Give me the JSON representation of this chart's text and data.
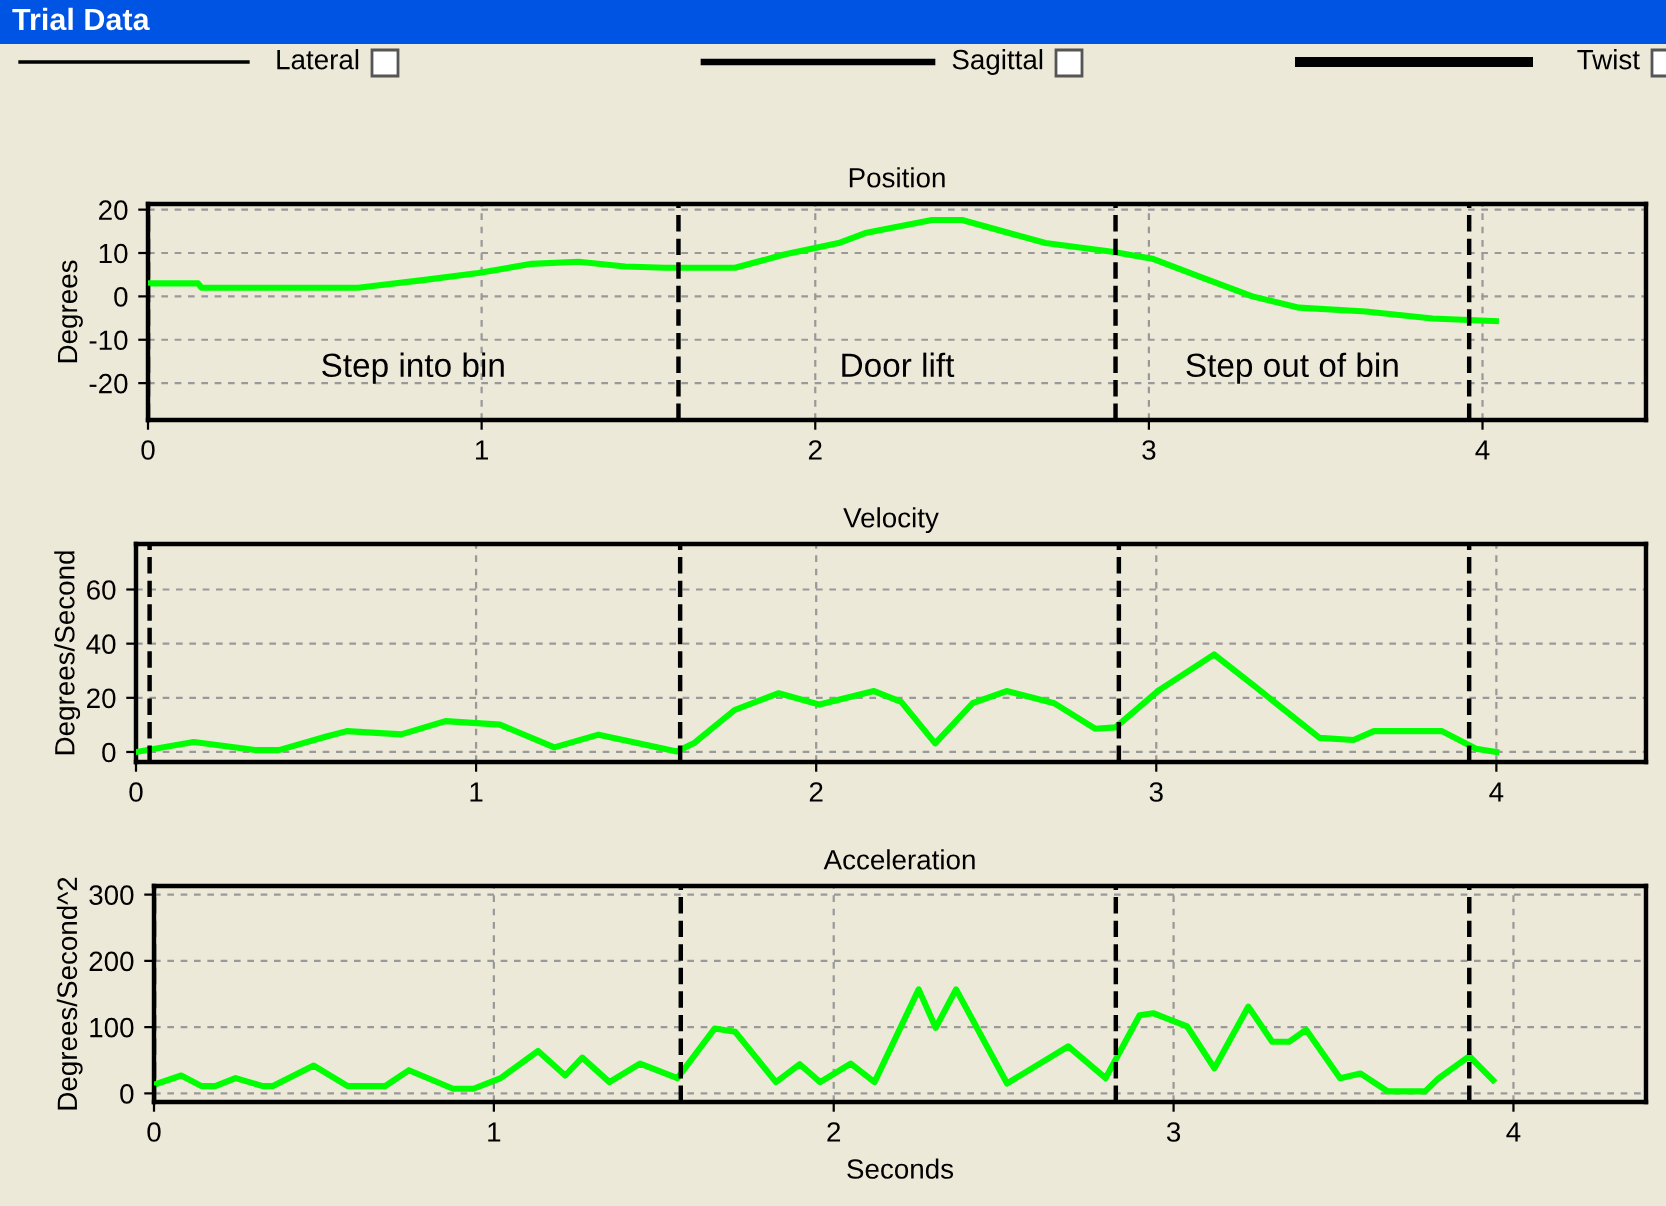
{
  "chart_data": [
    {
      "type": "line",
      "title": "Position",
      "ylabel": "Degrees",
      "xlim": [
        0,
        4.49
      ],
      "ylim": [
        -28.5,
        21.3
      ],
      "xticks": [
        0,
        1,
        2,
        3,
        4
      ],
      "yticks": [
        20,
        10,
        0,
        -10,
        -20
      ],
      "grid": true,
      "marker": "none",
      "line_style": "solid",
      "series": [
        {
          "color": "#00ff00",
          "x": [
            0,
            0.15,
            0.16,
            0.63,
            0.83,
            0.99,
            1.15,
            1.29,
            1.43,
            1.55,
            1.76,
            1.91,
            2.07,
            2.15,
            2.35,
            2.44,
            2.69,
            2.89,
            3.01,
            3.15,
            3.31,
            3.45,
            3.65,
            3.85,
            4.04
          ],
          "values": [
            3,
            3,
            2,
            2,
            3.8,
            5.4,
            7.5,
            8,
            6.9,
            6.6,
            6.6,
            9.7,
            12.3,
            14.6,
            17.6,
            17.6,
            12.3,
            10.3,
            8.7,
            4.6,
            0,
            -2.6,
            -3.5,
            -5.1,
            -5.7
          ]
        }
      ],
      "ref_lines": [
        {
          "axis": "x",
          "value": 0,
          "color": "#000000",
          "line_style": "dashed"
        },
        {
          "axis": "x",
          "value": 1.59,
          "color": "#000000",
          "line_style": "dashed"
        },
        {
          "axis": "x",
          "value": 2.9,
          "color": "#000000",
          "line_style": "dashed"
        },
        {
          "axis": "x",
          "value": 3.96,
          "color": "#000000",
          "line_style": "dashed"
        }
      ],
      "annotations": [
        "Trial Data",
        "Lateral",
        "Sagittal",
        "Twist",
        "Step into bin",
        "Door lift",
        "Step out of bin"
      ]
    },
    {
      "type": "line",
      "title": "Velocity",
      "ylabel": "Degrees/Second",
      "xlim": [
        0,
        4.44
      ],
      "ylim": [
        -3.7,
        76.8
      ],
      "xticks": [
        0,
        1,
        2,
        3,
        4
      ],
      "yticks": [
        0,
        20,
        40,
        60
      ],
      "grid": true,
      "marker": "none",
      "line_style": "solid",
      "series": [
        {
          "color": "#00ff00",
          "x": [
            0,
            0.17,
            0.35,
            0.42,
            0.56,
            0.62,
            0.78,
            0.91,
            1.07,
            1.23,
            1.36,
            1.46,
            1.59,
            1.64,
            1.76,
            1.89,
            2.01,
            2.17,
            2.25,
            2.35,
            2.46,
            2.56,
            2.7,
            2.82,
            2.88,
            3.01,
            3.17,
            3.29,
            3.48,
            3.58,
            3.64,
            3.84,
            3.94,
            4.0
          ],
          "values": [
            0,
            3.7,
            0.7,
            0.7,
            5.7,
            7.7,
            6.5,
            11.4,
            10.1,
            1.7,
            6.4,
            3.7,
            0.2,
            3.2,
            15.5,
            21.7,
            17.5,
            22.5,
            18.5,
            3.2,
            18,
            22.5,
            18,
            8.6,
            9.1,
            23,
            36,
            24.2,
            5.2,
            4.4,
            7.7,
            7.7,
            1.2,
            0
          ]
        }
      ],
      "ref_lines": [
        {
          "axis": "x",
          "value": 0.04,
          "color": "#000000",
          "line_style": "dashed"
        },
        {
          "axis": "x",
          "value": 1.6,
          "color": "#000000",
          "line_style": "dashed"
        },
        {
          "axis": "x",
          "value": 2.89,
          "color": "#000000",
          "line_style": "dashed"
        },
        {
          "axis": "x",
          "value": 3.92,
          "color": "#000000",
          "line_style": "dashed"
        }
      ]
    },
    {
      "type": "line",
      "title": "Acceleration",
      "ylabel": "Degrees/Second^2",
      "xlabel": "Seconds",
      "xlim": [
        0,
        4.39
      ],
      "ylim": [
        -13,
        313
      ],
      "xticks": [
        0,
        1,
        2,
        3,
        4
      ],
      "yticks": [
        0,
        100,
        200,
        300
      ],
      "grid": true,
      "marker": "none",
      "line_style": "solid",
      "series": [
        {
          "color": "#00ff00",
          "x": [
            0,
            0.08,
            0.14,
            0.18,
            0.24,
            0.32,
            0.35,
            0.47,
            0.57,
            0.68,
            0.75,
            0.88,
            0.94,
            1.02,
            1.13,
            1.21,
            1.26,
            1.34,
            1.43,
            1.54,
            1.65,
            1.71,
            1.83,
            1.9,
            1.96,
            2.05,
            2.12,
            2.25,
            2.3,
            2.36,
            2.51,
            2.69,
            2.8,
            2.9,
            2.94,
            3.04,
            3.12,
            3.22,
            3.29,
            3.34,
            3.39,
            3.49,
            3.55,
            3.63,
            3.74,
            3.78,
            3.87,
            3.94
          ],
          "values": [
            13,
            27,
            11,
            11,
            23,
            11,
            11,
            42,
            11,
            11,
            35,
            7,
            7,
            23,
            64,
            27,
            54,
            17,
            45,
            23,
            98,
            93,
            17,
            44,
            17,
            45,
            17,
            157,
            99,
            157,
            15,
            71,
            23,
            118,
            121,
            101,
            38,
            131,
            78,
            78,
            96,
            23,
            30,
            3,
            3,
            23,
            56,
            20
          ]
        }
      ],
      "ref_lines": [
        {
          "axis": "x",
          "value": 0,
          "color": "#000000",
          "line_style": "dashed"
        },
        {
          "axis": "x",
          "value": 1.55,
          "color": "#000000",
          "line_style": "dashed"
        },
        {
          "axis": "x",
          "value": 2.83,
          "color": "#000000",
          "line_style": "dashed"
        },
        {
          "axis": "x",
          "value": 3.87,
          "color": "#000000",
          "line_style": "dashed"
        }
      ]
    }
  ]
}
